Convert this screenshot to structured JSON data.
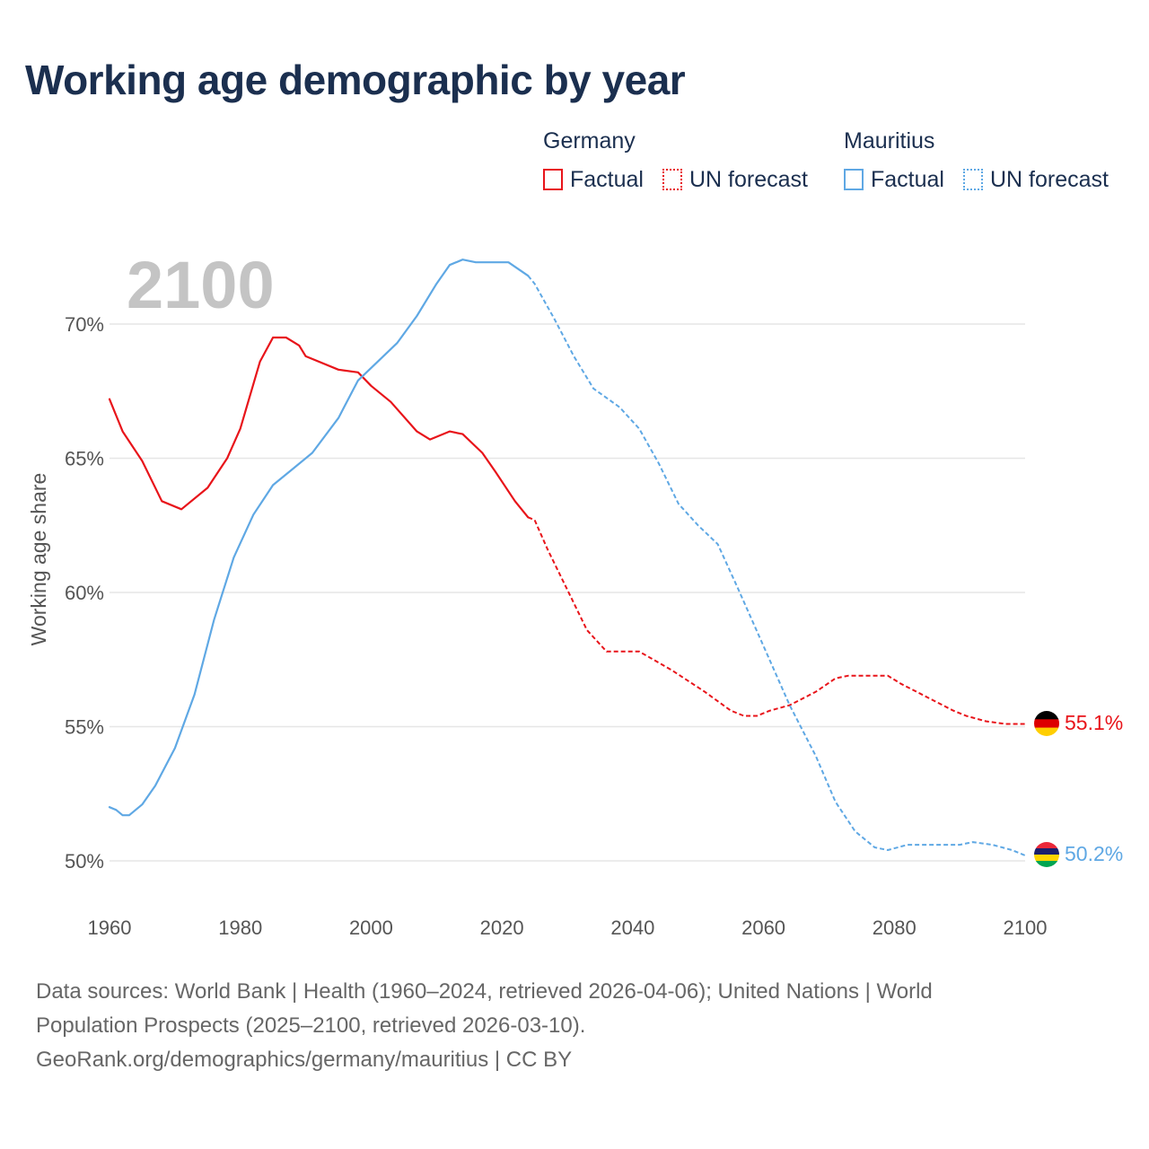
{
  "title": "Working age demographic by year",
  "legend": {
    "germany": {
      "header": "Germany",
      "factual": "Factual",
      "forecast": "UN forecast",
      "color": "#e8141a"
    },
    "mauritius": {
      "header": "Mauritius",
      "factual": "Factual",
      "forecast": "UN forecast",
      "color": "#5fa8e4"
    }
  },
  "year_label": "2100",
  "footer": {
    "line1": "Data sources: World Bank | Health (1960–2024, retrieved 2026-04-06); United Nations | World",
    "line2": "Population Prospects (2025–2100, retrieved 2026-03-10).",
    "line3": "GeoRank.org/demographics/germany/mauritius | CC BY"
  },
  "chart_data": {
    "type": "line",
    "title": "Working age demographic by year",
    "xlabel": "",
    "ylabel": "Working age share",
    "xlim": [
      1960,
      2100
    ],
    "ylim": [
      50,
      72
    ],
    "x_ticks": [
      "1960",
      "1980",
      "2000",
      "2020",
      "2040",
      "2060",
      "2080",
      "2100"
    ],
    "y_ticks": [
      "50%",
      "55%",
      "60%",
      "65%",
      "70%"
    ],
    "grid": true,
    "factual_range": [
      1960,
      2024
    ],
    "forecast_range": [
      2025,
      2100
    ],
    "series": [
      {
        "name": "Germany",
        "color": "#e8141a",
        "end_label": "55.1%",
        "flag": "germany-flag",
        "points": [
          [
            1960,
            67.2
          ],
          [
            1962,
            66.0
          ],
          [
            1965,
            64.9
          ],
          [
            1968,
            63.4
          ],
          [
            1971,
            63.1
          ],
          [
            1975,
            63.9
          ],
          [
            1978,
            65.0
          ],
          [
            1980,
            66.1
          ],
          [
            1983,
            68.6
          ],
          [
            1985,
            69.5
          ],
          [
            1987,
            69.5
          ],
          [
            1989,
            69.2
          ],
          [
            1990,
            68.8
          ],
          [
            1995,
            68.3
          ],
          [
            1998,
            68.2
          ],
          [
            2000,
            67.7
          ],
          [
            2003,
            67.1
          ],
          [
            2007,
            66.0
          ],
          [
            2009,
            65.7
          ],
          [
            2012,
            66.0
          ],
          [
            2014,
            65.9
          ],
          [
            2017,
            65.2
          ],
          [
            2019,
            64.5
          ],
          [
            2022,
            63.4
          ],
          [
            2024,
            62.8
          ],
          [
            2025,
            62.7
          ],
          [
            2027,
            61.6
          ],
          [
            2030,
            60.1
          ],
          [
            2033,
            58.6
          ],
          [
            2036,
            57.8
          ],
          [
            2041,
            57.8
          ],
          [
            2046,
            57.1
          ],
          [
            2051,
            56.3
          ],
          [
            2055,
            55.6
          ],
          [
            2057,
            55.4
          ],
          [
            2059,
            55.4
          ],
          [
            2061,
            55.6
          ],
          [
            2064,
            55.8
          ],
          [
            2068,
            56.3
          ],
          [
            2071,
            56.8
          ],
          [
            2073,
            56.9
          ],
          [
            2079,
            56.9
          ],
          [
            2081,
            56.6
          ],
          [
            2085,
            56.1
          ],
          [
            2089,
            55.6
          ],
          [
            2091,
            55.4
          ],
          [
            2094,
            55.2
          ],
          [
            2097,
            55.1
          ],
          [
            2100,
            55.1
          ]
        ]
      },
      {
        "name": "Mauritius",
        "color": "#5fa8e4",
        "end_label": "50.2%",
        "flag": "mauritius-flag",
        "points": [
          [
            1960,
            52.0
          ],
          [
            1961,
            51.9
          ],
          [
            1962,
            51.7
          ],
          [
            1963,
            51.7
          ],
          [
            1965,
            52.1
          ],
          [
            1967,
            52.8
          ],
          [
            1970,
            54.2
          ],
          [
            1973,
            56.2
          ],
          [
            1976,
            59.0
          ],
          [
            1979,
            61.3
          ],
          [
            1982,
            62.9
          ],
          [
            1985,
            64.0
          ],
          [
            1988,
            64.6
          ],
          [
            1991,
            65.2
          ],
          [
            1995,
            66.5
          ],
          [
            1998,
            67.9
          ],
          [
            2001,
            68.6
          ],
          [
            2004,
            69.3
          ],
          [
            2007,
            70.3
          ],
          [
            2010,
            71.5
          ],
          [
            2012,
            72.2
          ],
          [
            2014,
            72.4
          ],
          [
            2016,
            72.3
          ],
          [
            2021,
            72.3
          ],
          [
            2024,
            71.8
          ],
          [
            2025,
            71.5
          ],
          [
            2028,
            70.2
          ],
          [
            2031,
            68.8
          ],
          [
            2034,
            67.6
          ],
          [
            2038,
            66.9
          ],
          [
            2041,
            66.1
          ],
          [
            2044,
            64.8
          ],
          [
            2047,
            63.3
          ],
          [
            2050,
            62.5
          ],
          [
            2053,
            61.8
          ],
          [
            2056,
            60.2
          ],
          [
            2060,
            58.0
          ],
          [
            2064,
            55.8
          ],
          [
            2068,
            53.9
          ],
          [
            2071,
            52.2
          ],
          [
            2074,
            51.1
          ],
          [
            2077,
            50.5
          ],
          [
            2079,
            50.4
          ],
          [
            2082,
            50.6
          ],
          [
            2085,
            50.6
          ],
          [
            2090,
            50.6
          ],
          [
            2092,
            50.7
          ],
          [
            2095,
            50.6
          ],
          [
            2098,
            50.4
          ],
          [
            2100,
            50.2
          ]
        ]
      }
    ]
  }
}
